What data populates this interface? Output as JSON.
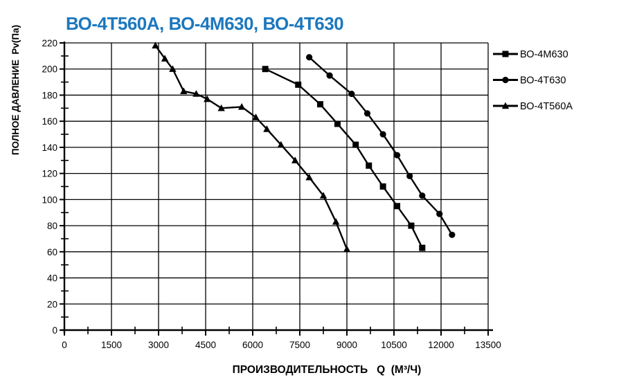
{
  "chart_data": {
    "type": "line",
    "title": "ВО-4Т560А, ВО-4М630, ВО-4Т630",
    "title_color": "#1c78be",
    "xlabel": "ПРОИЗВОДИТЕЛЬНОСТЬ   Q  (М³/Ч)",
    "ylabel": "ПОЛНОЕ ДАВЛЕНИЕ  Pv(Па)",
    "xlim": [
      0,
      13500
    ],
    "ylim": [
      0,
      220
    ],
    "x_ticks": [
      0,
      1500,
      3000,
      4500,
      6000,
      7500,
      9000,
      10500,
      12000,
      13500
    ],
    "y_ticks": [
      0,
      20,
      40,
      60,
      80,
      100,
      120,
      140,
      160,
      180,
      200,
      220
    ],
    "x_minor_step": 750,
    "y_minor_step": 10,
    "grid": true,
    "line_color": "#000000",
    "background_color": "#ffffff",
    "legend_position": "right",
    "series": [
      {
        "name": "ВО-4М630",
        "marker": "square",
        "points": [
          [
            6400,
            200
          ],
          [
            7450,
            188
          ],
          [
            8150,
            173
          ],
          [
            8700,
            158
          ],
          [
            9280,
            142
          ],
          [
            9700,
            126
          ],
          [
            10150,
            110
          ],
          [
            10600,
            95
          ],
          [
            11050,
            80
          ],
          [
            11400,
            63
          ]
        ]
      },
      {
        "name": "ВО-4Т630",
        "marker": "circle",
        "points": [
          [
            7800,
            209
          ],
          [
            8450,
            195
          ],
          [
            9150,
            181
          ],
          [
            9650,
            166
          ],
          [
            10150,
            150
          ],
          [
            10600,
            134
          ],
          [
            11000,
            118
          ],
          [
            11400,
            103
          ],
          [
            11950,
            89
          ],
          [
            12350,
            73
          ]
        ]
      },
      {
        "name": "ВО-4Т560А",
        "marker": "triangle",
        "points": [
          [
            2900,
            218
          ],
          [
            3200,
            208
          ],
          [
            3450,
            200
          ],
          [
            3800,
            183
          ],
          [
            4200,
            181
          ],
          [
            4550,
            177
          ],
          [
            5000,
            170
          ],
          [
            5650,
            171
          ],
          [
            6100,
            163
          ],
          [
            6450,
            154
          ],
          [
            6900,
            142
          ],
          [
            7350,
            130
          ],
          [
            7800,
            117
          ],
          [
            8250,
            103
          ],
          [
            8650,
            83
          ],
          [
            9000,
            62
          ]
        ]
      }
    ]
  }
}
